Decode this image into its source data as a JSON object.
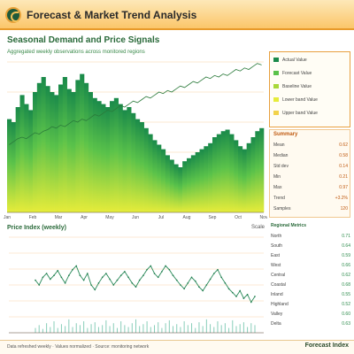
{
  "header": {
    "title": "Forecast & Market Trend Analysis",
    "logo_icon": "logo-s-icon"
  },
  "subtitle": "Seasonal Demand and Price Signals",
  "subcaption": "Aggregated weekly observations across monitored regions",
  "colors": {
    "accent": "#e89a2a",
    "green_dark": "#1a8a4a",
    "green_mid": "#5ac24a",
    "yellow": "#e6ec3a",
    "line": "#2a8a5a"
  },
  "legend": [
    {
      "label": "Actual",
      "value": "Value",
      "color": "#1a8a4a"
    },
    {
      "label": "Forecast",
      "value": "Value",
      "color": "#5ac24a"
    },
    {
      "label": "Baseline",
      "value": "Value",
      "color": "#a8d83a"
    },
    {
      "label": "Lower band",
      "value": "Value",
      "color": "#e6ec3a"
    },
    {
      "label": "Upper band",
      "value": "Value",
      "color": "#f2d24a"
    }
  ],
  "stats": {
    "title": "Summary",
    "rows": [
      {
        "label": "Mean",
        "value": "0.62"
      },
      {
        "label": "Median",
        "value": "0.58"
      },
      {
        "label": "Std dev",
        "value": "0.14"
      },
      {
        "label": "Min",
        "value": "0.21"
      },
      {
        "label": "Max",
        "value": "0.97"
      },
      {
        "label": "Trend",
        "value": "+3.2%"
      },
      {
        "label": "Samples",
        "value": "120"
      }
    ]
  },
  "section_two": {
    "title": "Price Index (weekly)",
    "right_label": "Scale"
  },
  "table": {
    "header": "Regional Metrics",
    "rows": [
      {
        "label": "North",
        "value": "0.71"
      },
      {
        "label": "South",
        "value": "0.64"
      },
      {
        "label": "East",
        "value": "0.59"
      },
      {
        "label": "West",
        "value": "0.66"
      },
      {
        "label": "Central",
        "value": "0.62"
      },
      {
        "label": "Coastal",
        "value": "0.68"
      },
      {
        "label": "Inland",
        "value": "0.55"
      },
      {
        "label": "Highland",
        "value": "0.52"
      },
      {
        "label": "Valley",
        "value": "0.60"
      },
      {
        "label": "Delta",
        "value": "0.63"
      }
    ]
  },
  "footer": {
    "text": "Data refreshed weekly · Values normalized · Source: monitoring network",
    "right": "Forecast Index"
  },
  "chart_data": [
    {
      "type": "area",
      "title": "Seasonal Demand and Price Signals",
      "xlabel": "",
      "ylabel": "",
      "x_ticks": [
        "Jan",
        "Feb",
        "Mar",
        "Apr",
        "May",
        "Jun",
        "Jul",
        "Aug",
        "Sep",
        "Oct",
        "Nov"
      ],
      "ylim": [
        0,
        1
      ],
      "values": [
        0.62,
        0.6,
        0.7,
        0.78,
        0.72,
        0.68,
        0.8,
        0.86,
        0.9,
        0.84,
        0.8,
        0.78,
        0.85,
        0.9,
        0.82,
        0.8,
        0.88,
        0.92,
        0.86,
        0.8,
        0.76,
        0.74,
        0.72,
        0.7,
        0.74,
        0.76,
        0.72,
        0.68,
        0.7,
        0.66,
        0.62,
        0.6,
        0.56,
        0.52,
        0.48,
        0.45,
        0.42,
        0.38,
        0.35,
        0.32,
        0.3,
        0.34,
        0.36,
        0.38,
        0.4,
        0.42,
        0.44,
        0.46,
        0.5,
        0.52,
        0.54,
        0.55,
        0.52,
        0.48,
        0.44,
        0.42,
        0.46,
        0.5,
        0.54,
        0.56
      ],
      "line_values": [
        0.1,
        0.12,
        0.14,
        0.15,
        0.14,
        0.16,
        0.18,
        0.17,
        0.19,
        0.2,
        0.22,
        0.21,
        0.23,
        0.22,
        0.24,
        0.26,
        0.25,
        0.27,
        0.26,
        0.28,
        0.3,
        0.29,
        0.31,
        0.33,
        0.32,
        0.34,
        0.36,
        0.35,
        0.37,
        0.39,
        0.38,
        0.4,
        0.42,
        0.41,
        0.43,
        0.45,
        0.44,
        0.46,
        0.45,
        0.47,
        0.49,
        0.48,
        0.5,
        0.52,
        0.51,
        0.53,
        0.55,
        0.54,
        0.56,
        0.55,
        0.57,
        0.56,
        0.58,
        0.6,
        0.59,
        0.61,
        0.6,
        0.62,
        0.64,
        0.63
      ],
      "grid": true
    },
    {
      "type": "line",
      "title": "Price Index (weekly)",
      "ylim": [
        0,
        1
      ],
      "values": [
        0.55,
        0.5,
        0.58,
        0.62,
        0.56,
        0.6,
        0.65,
        0.58,
        0.52,
        0.6,
        0.66,
        0.7,
        0.6,
        0.55,
        0.62,
        0.5,
        0.45,
        0.52,
        0.58,
        0.62,
        0.56,
        0.5,
        0.55,
        0.6,
        0.64,
        0.58,
        0.52,
        0.48,
        0.55,
        0.6,
        0.66,
        0.7,
        0.62,
        0.58,
        0.64,
        0.7,
        0.66,
        0.6,
        0.55,
        0.5,
        0.46,
        0.52,
        0.58,
        0.54,
        0.48,
        0.44,
        0.5,
        0.56,
        0.62,
        0.66,
        0.58,
        0.52,
        0.46,
        0.42,
        0.38,
        0.44,
        0.36,
        0.4,
        0.32,
        0.38
      ],
      "bars": [
        0.05,
        0.08,
        0.04,
        0.1,
        0.06,
        0.12,
        0.05,
        0.09,
        0.07,
        0.14,
        0.06,
        0.1,
        0.08,
        0.12,
        0.05,
        0.09,
        0.11,
        0.06,
        0.08,
        0.13,
        0.07,
        0.1,
        0.05,
        0.12,
        0.08,
        0.06,
        0.1,
        0.14,
        0.07,
        0.09,
        0.12,
        0.06,
        0.08,
        0.11,
        0.05,
        0.1,
        0.13,
        0.07,
        0.09,
        0.06,
        0.12,
        0.08,
        0.1,
        0.05,
        0.11,
        0.07,
        0.14,
        0.09,
        0.06,
        0.12,
        0.08,
        0.1,
        0.05,
        0.13,
        0.07,
        0.09,
        0.11,
        0.06,
        0.1,
        0.08
      ],
      "grid": true
    }
  ]
}
